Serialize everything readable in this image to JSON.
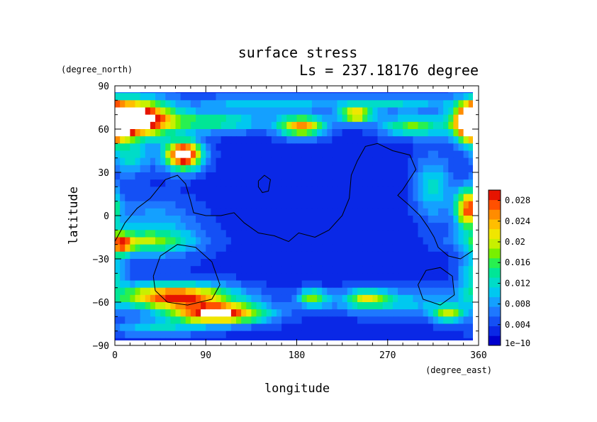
{
  "chart_data": {
    "type": "heatmap",
    "title": "surface stress",
    "subtitle": "Ls = 237.18176 degree",
    "xlabel": "longitude",
    "ylabel": "latitude",
    "x_unit": "(degree_east)",
    "y_unit": "(degree_north)",
    "xlim": [
      0,
      360
    ],
    "ylim": [
      -90,
      90
    ],
    "x_ticks": [
      "0",
      "90",
      "180",
      "270",
      "360"
    ],
    "y_ticks": [
      "90",
      "60",
      "30",
      "0",
      "−30",
      "−60",
      "−90"
    ],
    "x_tick_values": [
      0,
      90,
      180,
      270,
      360
    ],
    "y_tick_values": [
      90,
      60,
      30,
      0,
      -30,
      -60,
      -90
    ],
    "colorbar": {
      "min": 0,
      "max": 0.03,
      "tick_labels": [
        "1e−10",
        "0.004",
        "0.008",
        "0.012",
        "0.016",
        "0.02",
        "0.024",
        "0.028"
      ],
      "tick_values": [
        0,
        0.004,
        0.008,
        0.012,
        0.016,
        0.02,
        0.024,
        0.028
      ],
      "colors": [
        "#0000cd",
        "#0a28e6",
        "#1450f5",
        "#1e78ff",
        "#14a0ff",
        "#00c8f0",
        "#00dcc8",
        "#00e696",
        "#28f050",
        "#78f000",
        "#c8f000",
        "#f0e600",
        "#ffbe00",
        "#ff8c00",
        "#ff5000",
        "#e61400"
      ]
    },
    "background_value": 0.003,
    "hotspots": [
      {
        "lon": 20,
        "lat": 67,
        "rx": 25,
        "ry": 9,
        "value": 0.034
      },
      {
        "lon": 355,
        "lat": 64,
        "rx": 12,
        "ry": 9,
        "value": 0.034
      },
      {
        "lon": 68,
        "lat": 42,
        "rx": 13,
        "ry": 7,
        "value": 0.031
      },
      {
        "lon": 60,
        "lat": -56,
        "rx": 40,
        "ry": 6,
        "value": 0.026
      },
      {
        "lon": 102,
        "lat": -68,
        "rx": 32,
        "ry": 5,
        "value": 0.028
      },
      {
        "lon": 185,
        "lat": 62,
        "rx": 16,
        "ry": 5,
        "value": 0.022
      },
      {
        "lon": 238,
        "lat": 70,
        "rx": 12,
        "ry": 4,
        "value": 0.02
      },
      {
        "lon": 95,
        "lat": 65,
        "rx": 38,
        "ry": 5,
        "value": 0.012
      },
      {
        "lon": 295,
        "lat": 62,
        "rx": 22,
        "ry": 5,
        "value": 0.014
      },
      {
        "lon": 350,
        "lat": 5,
        "rx": 9,
        "ry": 10,
        "value": 0.024
      },
      {
        "lon": 6,
        "lat": -20,
        "rx": 8,
        "ry": 5,
        "value": 0.017
      },
      {
        "lon": 30,
        "lat": -18,
        "rx": 35,
        "ry": 5,
        "value": 0.01
      },
      {
        "lon": 195,
        "lat": -57,
        "rx": 10,
        "ry": 4,
        "value": 0.014
      },
      {
        "lon": 250,
        "lat": -57,
        "rx": 14,
        "ry": 4,
        "value": 0.012
      },
      {
        "lon": 330,
        "lat": -68,
        "rx": 12,
        "ry": 4,
        "value": 0.015
      },
      {
        "lon": 15,
        "lat": 40,
        "rx": 14,
        "ry": 8,
        "value": 0.009
      },
      {
        "lon": 315,
        "lat": 20,
        "rx": 12,
        "ry": 15,
        "value": 0.009
      },
      {
        "lon": 270,
        "lat": -60,
        "rx": 45,
        "ry": 6,
        "value": 0.008
      },
      {
        "lon": 40,
        "lat": -78,
        "rx": 30,
        "ry": 4,
        "value": 0.008
      },
      {
        "lon": 40,
        "lat": -10,
        "rx": 30,
        "ry": 14,
        "value": 0.007
      },
      {
        "lon": 150,
        "lat": 78,
        "rx": 50,
        "ry": 4,
        "value": 0.008
      },
      {
        "lon": 280,
        "lat": 78,
        "rx": 40,
        "ry": 4,
        "value": 0.008
      },
      {
        "lon": 355,
        "lat": -40,
        "rx": 10,
        "ry": 10,
        "value": 0.01
      }
    ],
    "contours": [
      {
        "name": "continent-outline",
        "points": [
          [
            0,
            -18
          ],
          [
            10,
            -5
          ],
          [
            22,
            5
          ],
          [
            35,
            12
          ],
          [
            50,
            25
          ],
          [
            62,
            28
          ],
          [
            70,
            22
          ],
          [
            75,
            10
          ],
          [
            78,
            2
          ],
          [
            90,
            0
          ],
          [
            105,
            0
          ],
          [
            118,
            2
          ],
          [
            128,
            -5
          ],
          [
            142,
            -12
          ],
          [
            158,
            -14
          ],
          [
            172,
            -18
          ],
          [
            182,
            -12
          ],
          [
            198,
            -15
          ],
          [
            212,
            -10
          ],
          [
            225,
            0
          ],
          [
            232,
            12
          ],
          [
            234,
            28
          ],
          [
            240,
            38
          ],
          [
            248,
            48
          ],
          [
            260,
            50
          ],
          [
            275,
            45
          ],
          [
            292,
            42
          ],
          [
            298,
            32
          ],
          [
            285,
            18
          ],
          [
            280,
            14
          ],
          [
            290,
            8
          ],
          [
            302,
            0
          ],
          [
            310,
            -8
          ],
          [
            316,
            -15
          ],
          [
            320,
            -22
          ],
          [
            330,
            -28
          ],
          [
            342,
            -30
          ],
          [
            355,
            -24
          ],
          [
            360,
            -20
          ]
        ]
      },
      {
        "name": "crater-left",
        "points": [
          [
            38,
            -42
          ],
          [
            45,
            -28
          ],
          [
            62,
            -20
          ],
          [
            80,
            -22
          ],
          [
            96,
            -32
          ],
          [
            104,
            -48
          ],
          [
            96,
            -58
          ],
          [
            72,
            -62
          ],
          [
            52,
            -60
          ],
          [
            40,
            -52
          ],
          [
            38,
            -42
          ]
        ]
      },
      {
        "name": "crater-right",
        "points": [
          [
            300,
            -48
          ],
          [
            308,
            -38
          ],
          [
            322,
            -36
          ],
          [
            334,
            -42
          ],
          [
            336,
            -55
          ],
          [
            322,
            -62
          ],
          [
            305,
            -58
          ],
          [
            300,
            -48
          ]
        ]
      },
      {
        "name": "small-island",
        "points": [
          [
            142,
            24
          ],
          [
            148,
            28
          ],
          [
            154,
            25
          ],
          [
            152,
            17
          ],
          [
            146,
            16
          ],
          [
            142,
            20
          ],
          [
            142,
            24
          ]
        ]
      }
    ]
  }
}
